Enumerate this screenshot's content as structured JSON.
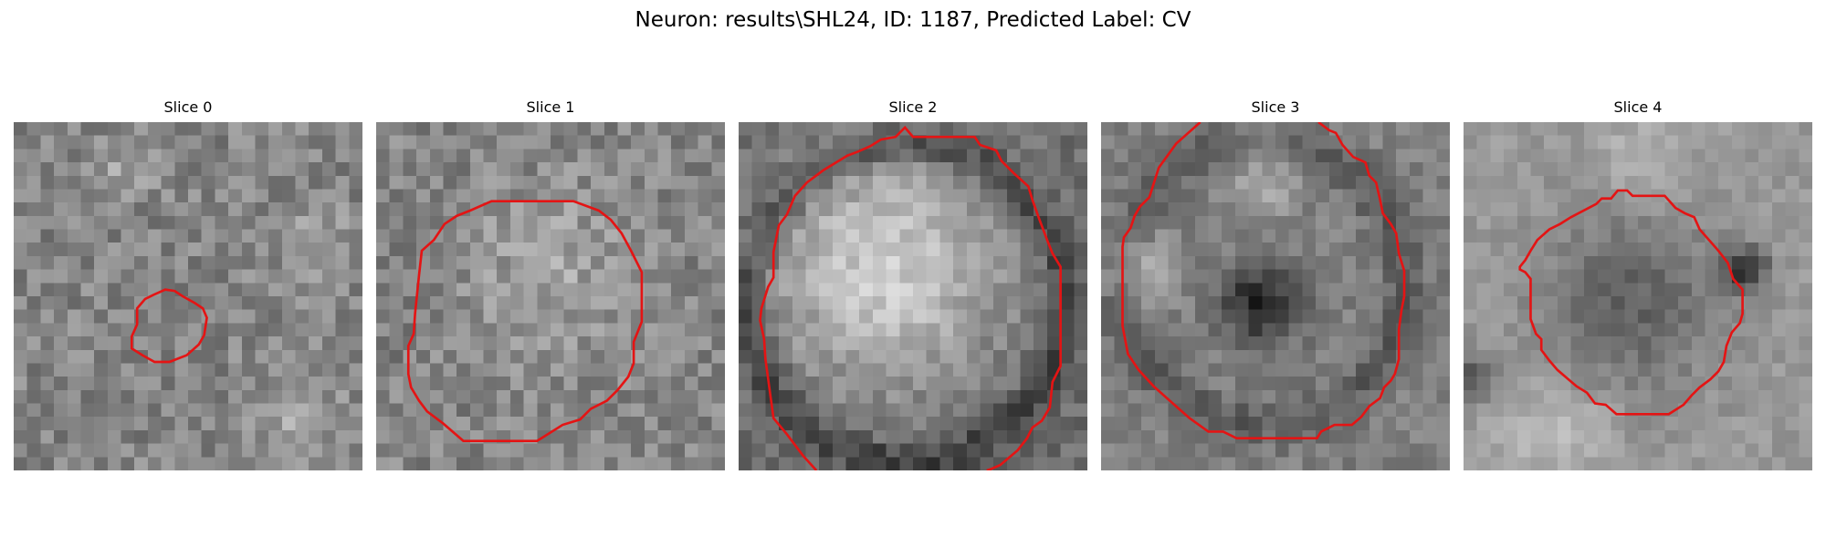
{
  "figure": {
    "title": "Neuron: results\\SHL24, ID: 1187, Predicted Label: CV"
  },
  "colors": {
    "background": "#ffffff",
    "contour": "#e41414",
    "colormap": "gray"
  },
  "slices": [
    {
      "title": "Slice 0"
    },
    {
      "title": "Slice 1"
    },
    {
      "title": "Slice 2"
    },
    {
      "title": "Slice 3"
    },
    {
      "title": "Slice 4"
    }
  ]
}
